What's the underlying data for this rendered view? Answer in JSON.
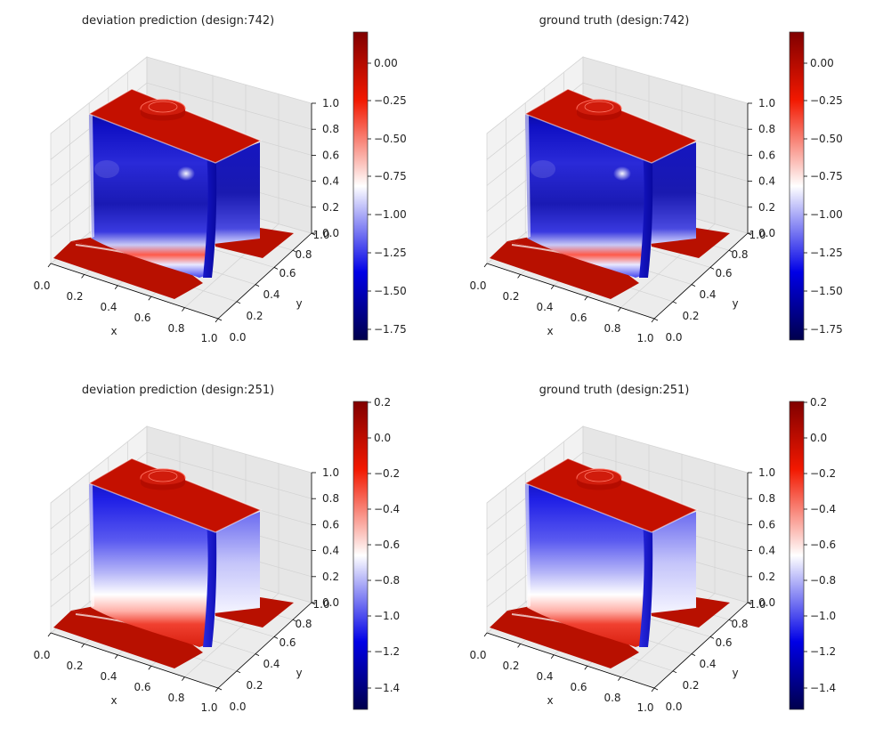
{
  "figure": {
    "panels": [
      {
        "title": "deviation prediction (design:742)",
        "source": "prediction",
        "design": 742,
        "colorbar_ticks": [
          "0.00",
          "−0.25",
          "−0.50",
          "−0.75",
          "−1.00",
          "−1.25",
          "−1.50",
          "−1.75"
        ]
      },
      {
        "title": "ground truth (design:742)",
        "source": "ground truth",
        "design": 742,
        "colorbar_ticks": [
          "0.00",
          "−0.25",
          "−0.50",
          "−0.75",
          "−1.00",
          "−1.25",
          "−1.50",
          "−1.75"
        ]
      },
      {
        "title": "deviation prediction (design:251)",
        "source": "prediction",
        "design": 251,
        "colorbar_ticks": [
          "0.2",
          "0.0",
          "−0.2",
          "−0.4",
          "−0.6",
          "−0.8",
          "−1.0",
          "−1.2",
          "−1.4"
        ]
      },
      {
        "title": "ground truth (design:251)",
        "source": "ground truth",
        "design": 251,
        "colorbar_ticks": [
          "0.2",
          "0.0",
          "−0.2",
          "−0.4",
          "−0.6",
          "−0.8",
          "−1.0",
          "−1.2",
          "−1.4"
        ]
      }
    ],
    "axes": {
      "xlabel": "x",
      "ylabel": "y",
      "x_ticks": [
        "0.0",
        "0.2",
        "0.4",
        "0.6",
        "0.8",
        "1.0"
      ],
      "y_ticks": [
        "0.0",
        "0.2",
        "0.4",
        "0.6",
        "0.8",
        "1.0"
      ],
      "z_ticks": [
        "0.0",
        "0.2",
        "0.4",
        "0.6",
        "0.8",
        "1.0"
      ]
    },
    "colormap": {
      "name": "seismic",
      "low": "#00004c",
      "mid": "#ffffff",
      "high": "#800000"
    },
    "surface_colors": {
      "base_plate": "#b81000",
      "top_cap": "#c41000"
    }
  },
  "chart_data": [
    {
      "type": "scatter",
      "subtype": "3d-point-cloud",
      "title": "deviation prediction (design:742)",
      "xlabel": "x",
      "ylabel": "y",
      "zlabel": "",
      "xlim": [
        0,
        1
      ],
      "ylim": [
        0,
        1
      ],
      "zlim": [
        0,
        1
      ],
      "color_range": [
        -1.8,
        0.2
      ],
      "colorbar_ticks": [
        0.0,
        -0.25,
        -0.5,
        -0.75,
        -1.0,
        -1.25,
        -1.5,
        -1.75
      ],
      "regions": [
        {
          "name": "base plate",
          "deviation": 0.15
        },
        {
          "name": "top cap",
          "deviation": 0.1
        },
        {
          "name": "front face top",
          "deviation": -1.75
        },
        {
          "name": "front face middle",
          "deviation": -1.5
        },
        {
          "name": "front face lower",
          "deviation": -1.2
        },
        {
          "name": "front face bottom",
          "deviation": -0.6
        },
        {
          "name": "rear face",
          "deviation": -1.55
        }
      ]
    },
    {
      "type": "scatter",
      "subtype": "3d-point-cloud",
      "title": "ground truth (design:742)",
      "xlabel": "x",
      "ylabel": "y",
      "zlabel": "",
      "xlim": [
        0,
        1
      ],
      "ylim": [
        0,
        1
      ],
      "zlim": [
        0,
        1
      ],
      "color_range": [
        -1.8,
        0.2
      ],
      "colorbar_ticks": [
        0.0,
        -0.25,
        -0.5,
        -0.75,
        -1.0,
        -1.25,
        -1.5,
        -1.75
      ],
      "regions": [
        {
          "name": "base plate",
          "deviation": 0.15
        },
        {
          "name": "top cap",
          "deviation": 0.1
        },
        {
          "name": "front face top",
          "deviation": -1.75
        },
        {
          "name": "front face middle",
          "deviation": -1.45
        },
        {
          "name": "front face lower",
          "deviation": -1.15
        },
        {
          "name": "front face bottom",
          "deviation": -0.55
        },
        {
          "name": "rear face",
          "deviation": -1.55
        }
      ]
    },
    {
      "type": "scatter",
      "subtype": "3d-point-cloud",
      "title": "deviation prediction (design:251)",
      "xlabel": "x",
      "ylabel": "y",
      "zlabel": "",
      "xlim": [
        0,
        1
      ],
      "ylim": [
        0,
        1
      ],
      "zlim": [
        0,
        1
      ],
      "color_range": [
        -1.5,
        0.2
      ],
      "colorbar_ticks": [
        0.2,
        0.0,
        -0.2,
        -0.4,
        -0.6,
        -0.8,
        -1.0,
        -1.2,
        -1.4
      ],
      "regions": [
        {
          "name": "base plate",
          "deviation": 0.15
        },
        {
          "name": "top cap",
          "deviation": 0.1
        },
        {
          "name": "front face top",
          "deviation": -1.1
        },
        {
          "name": "front face middle",
          "deviation": -0.9
        },
        {
          "name": "front face lower",
          "deviation": -0.7
        },
        {
          "name": "front face bottom",
          "deviation": -0.2
        },
        {
          "name": "rear face",
          "deviation": -0.75
        }
      ]
    },
    {
      "type": "scatter",
      "subtype": "3d-point-cloud",
      "title": "ground truth (design:251)",
      "xlabel": "x",
      "ylabel": "y",
      "zlabel": "",
      "xlim": [
        0,
        1
      ],
      "ylim": [
        0,
        1
      ],
      "zlim": [
        0,
        1
      ],
      "color_range": [
        -1.5,
        0.2
      ],
      "colorbar_ticks": [
        0.2,
        0.0,
        -0.2,
        -0.4,
        -0.6,
        -0.8,
        -1.0,
        -1.2,
        -1.4
      ],
      "regions": [
        {
          "name": "base plate",
          "deviation": 0.15
        },
        {
          "name": "top cap",
          "deviation": 0.1
        },
        {
          "name": "front face top",
          "deviation": -1.15
        },
        {
          "name": "front face middle",
          "deviation": -0.9
        },
        {
          "name": "front face lower",
          "deviation": -0.65
        },
        {
          "name": "front face bottom",
          "deviation": -0.2
        },
        {
          "name": "rear face",
          "deviation": -0.7
        }
      ]
    }
  ]
}
